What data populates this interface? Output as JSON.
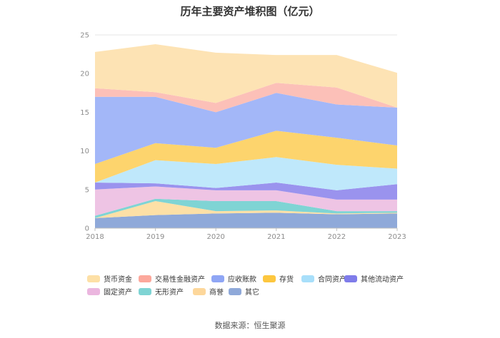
{
  "chart_data": {
    "type": "area",
    "stacked": true,
    "title": "历年主要资产堆积图（亿元）",
    "x": [
      "2018",
      "2019",
      "2020",
      "2021",
      "2022",
      "2023"
    ],
    "ylim": [
      0,
      25
    ],
    "yticks": [
      "0",
      "5",
      "10",
      "15",
      "20",
      "25"
    ],
    "grid": true,
    "legend_position": "bottom",
    "series": [
      {
        "name": "其它",
        "color": "#8fa9d9",
        "values": [
          1.3,
          1.7,
          1.9,
          2.0,
          1.8,
          1.9
        ]
      },
      {
        "name": "商誉",
        "color": "#fde0a6",
        "values": [
          0.0,
          1.8,
          0.3,
          0.3,
          0.1,
          0.1
        ]
      },
      {
        "name": "无形资产",
        "color": "#7fd4d4",
        "values": [
          0.3,
          0.3,
          1.3,
          1.2,
          0.3,
          0.2
        ]
      },
      {
        "name": "固定资产",
        "color": "#eec4e4",
        "values": [
          3.4,
          1.6,
          1.4,
          1.4,
          1.5,
          1.5
        ]
      },
      {
        "name": "其他流动资产",
        "color": "#9a93ee",
        "values": [
          0.9,
          0.4,
          0.3,
          1.0,
          1.2,
          2.0
        ]
      },
      {
        "name": "合同资产",
        "color": "#bfe8fb",
        "values": [
          0.0,
          3.0,
          3.1,
          3.3,
          3.3,
          2.0
        ]
      },
      {
        "name": "存货",
        "color": "#fdd46d",
        "values": [
          2.4,
          2.2,
          2.1,
          3.4,
          3.5,
          3.0
        ]
      },
      {
        "name": "应收账款",
        "color": "#a3b7f8",
        "values": [
          8.7,
          6.0,
          4.6,
          4.9,
          4.3,
          4.9
        ]
      },
      {
        "name": "交易性金融资产",
        "color": "#fcc0b8",
        "values": [
          1.1,
          0.6,
          1.2,
          1.3,
          2.2,
          0.0
        ]
      },
      {
        "name": "货币资金",
        "color": "#fde3b4",
        "values": [
          4.7,
          6.2,
          6.5,
          3.6,
          4.2,
          4.5
        ]
      }
    ]
  },
  "legend": [
    {
      "label": "货币资金",
      "color": "#fde0a6"
    },
    {
      "label": "交易性金融资产",
      "color": "#fca89c"
    },
    {
      "label": "应收账款",
      "color": "#8fa6f5"
    },
    {
      "label": "存货",
      "color": "#fdc73f"
    },
    {
      "label": "合同资产",
      "color": "#a8dffa"
    },
    {
      "label": "其他流动资产",
      "color": "#7f7cea"
    },
    {
      "label": "固定资产",
      "color": "#ebb6df"
    },
    {
      "label": "无形资产",
      "color": "#7fd4d4"
    },
    {
      "label": "商誉",
      "color": "#fdd79b"
    },
    {
      "label": "其它",
      "color": "#8fa9d9"
    }
  ],
  "source": "数据来源：恒生聚源"
}
